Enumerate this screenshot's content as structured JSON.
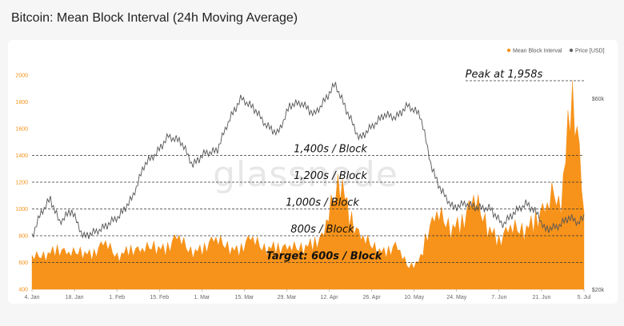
{
  "title": "Bitcoin: Mean Block Interval (24h Moving Average)",
  "watermark": "glassnode",
  "colors": {
    "block": "#f7931a",
    "price": "#555555",
    "grid": "#e9e9e9"
  },
  "chart_data": {
    "type": "area",
    "legend": {
      "position": "top-right",
      "items": [
        "Mean Block Interval",
        "Price [USD]"
      ]
    },
    "x_ticks": [
      "4. Jan",
      "18. Jan",
      "1. Feb",
      "15. Feb",
      "1. Mar",
      "15. Mar",
      "29. Mar",
      "12. Apr",
      "26. Apr",
      "10. May",
      "24. May",
      "7. Jun",
      "21. Jun",
      "5. Jul"
    ],
    "y_left": {
      "ticks": [
        "400",
        "600",
        "800",
        "1000",
        "1200",
        "1400",
        "1600",
        "1800",
        "2000"
      ],
      "range": [
        400,
        2000
      ]
    },
    "y_right": {
      "ticks": [
        "$20k",
        "$60k"
      ],
      "range": [
        20000,
        60000
      ]
    },
    "annotations": [
      {
        "label": "Peak at 1,958s",
        "value": 1958
      },
      {
        "label": "1,400s / Block",
        "value": 1400
      },
      {
        "label": "1,200s / Block",
        "value": 1200
      },
      {
        "label": "1,000s / Block",
        "value": 1000
      },
      {
        "label": "800s / Block",
        "value": 800
      },
      {
        "label": "Target: 600s / Block",
        "value": 600,
        "bold": true
      }
    ],
    "series": [
      {
        "name": "Mean Block Interval",
        "x": [
          "2021-01-04",
          "2021-01-08",
          "2021-01-12",
          "2021-01-16",
          "2021-01-20",
          "2021-01-24",
          "2021-01-28",
          "2021-02-01",
          "2021-02-05",
          "2021-02-09",
          "2021-02-13",
          "2021-02-17",
          "2021-02-21",
          "2021-02-25",
          "2021-03-01",
          "2021-03-05",
          "2021-03-09",
          "2021-03-13",
          "2021-03-17",
          "2021-03-21",
          "2021-03-25",
          "2021-03-29",
          "2021-04-02",
          "2021-04-06",
          "2021-04-10",
          "2021-04-14",
          "2021-04-16",
          "2021-04-18",
          "2021-04-20",
          "2021-04-22",
          "2021-04-26",
          "2021-04-30",
          "2021-05-04",
          "2021-05-08",
          "2021-05-12",
          "2021-05-14",
          "2021-05-18",
          "2021-05-22",
          "2021-05-26",
          "2021-05-30",
          "2021-06-03",
          "2021-06-07",
          "2021-06-11",
          "2021-06-15",
          "2021-06-19",
          "2021-06-23",
          "2021-06-25",
          "2021-06-27",
          "2021-06-29",
          "2021-07-01",
          "2021-07-03",
          "2021-07-05"
        ],
        "values": [
          620,
          650,
          700,
          640,
          680,
          660,
          720,
          640,
          700,
          660,
          720,
          700,
          760,
          680,
          700,
          740,
          720,
          690,
          750,
          700,
          720,
          680,
          700,
          740,
          760,
          1100,
          1240,
          1000,
          880,
          760,
          720,
          680,
          700,
          560,
          620,
          800,
          920,
          860,
          900,
          1020,
          880,
          760,
          820,
          840,
          920,
          960,
          1100,
          1000,
          1400,
          1958,
          1450,
          900
        ]
      },
      {
        "name": "Price [USD]",
        "x": [
          "2021-01-04",
          "2021-01-07",
          "2021-01-10",
          "2021-01-13",
          "2021-01-17",
          "2021-01-21",
          "2021-01-25",
          "2021-01-29",
          "2021-02-02",
          "2021-02-06",
          "2021-02-10",
          "2021-02-14",
          "2021-02-18",
          "2021-02-22",
          "2021-02-26",
          "2021-03-02",
          "2021-03-06",
          "2021-03-10",
          "2021-03-14",
          "2021-03-18",
          "2021-03-22",
          "2021-03-26",
          "2021-03-30",
          "2021-04-03",
          "2021-04-07",
          "2021-04-11",
          "2021-04-14",
          "2021-04-18",
          "2021-04-22",
          "2021-04-26",
          "2021-04-30",
          "2021-05-04",
          "2021-05-08",
          "2021-05-12",
          "2021-05-16",
          "2021-05-19",
          "2021-05-23",
          "2021-05-27",
          "2021-05-31",
          "2021-06-04",
          "2021-06-08",
          "2021-06-12",
          "2021-06-16",
          "2021-06-20",
          "2021-06-22",
          "2021-06-26",
          "2021-06-30",
          "2021-07-03",
          "2021-07-05"
        ],
        "values": [
          31000,
          36000,
          39000,
          34000,
          36500,
          31000,
          32000,
          33500,
          35500,
          39000,
          46000,
          48500,
          52000,
          51000,
          46000,
          48500,
          49000,
          55500,
          60000,
          58000,
          54500,
          52500,
          58500,
          59000,
          56500,
          60000,
          63000,
          57000,
          51500,
          54000,
          56500,
          56000,
          58500,
          56500,
          45000,
          40500,
          37000,
          38000,
          37000,
          37000,
          33500,
          36000,
          38000,
          35500,
          32500,
          33000,
          35000,
          34000,
          35000
        ]
      }
    ]
  }
}
